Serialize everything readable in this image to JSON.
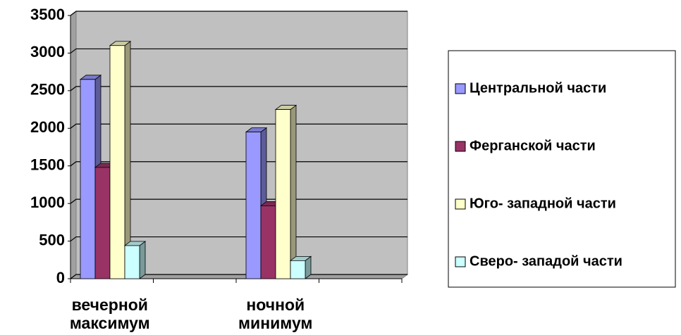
{
  "chart_data": {
    "type": "bar",
    "categories": [
      "вечерной максимум",
      null,
      "ночной минимум",
      null
    ],
    "series": [
      {
        "name": "Центральной части",
        "color": "#9999ff",
        "values": [
          2650,
          null,
          1950,
          null
        ]
      },
      {
        "name": "Ферганской части",
        "color": "#993366",
        "values": [
          1480,
          null,
          970,
          null
        ]
      },
      {
        "name": "Юго- западной части",
        "color": "#ffffcc",
        "values": [
          3100,
          null,
          2250,
          null
        ]
      },
      {
        "name": "Сверо- западой части",
        "color": "#ccffff",
        "values": [
          440,
          null,
          240,
          null
        ]
      }
    ],
    "ylim": [
      0,
      3500
    ],
    "yticks": [
      0,
      500,
      1000,
      1500,
      2000,
      2500,
      3000,
      3500
    ],
    "grid": true,
    "legend": "right"
  }
}
